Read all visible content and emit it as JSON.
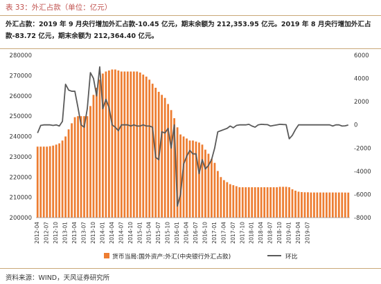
{
  "caption": "表 33：外汇占款（单位：亿元）",
  "paragraph": "外汇占款：2019 年 9 月央行增加外汇占款-10.45 亿元，期末余额为 212,353.95 亿元。2019 年 8 月央行增加外汇占款-83.72 亿元，期末余额为 212,364.40 亿元。",
  "source": "资料来源：WIND，天风证券研究所",
  "chart_data": {
    "type": "bar",
    "title": "",
    "xlabel": "",
    "ylabel": "",
    "ylim": [
      200000,
      280000
    ],
    "y_ticks": [
      200000,
      210000,
      220000,
      230000,
      240000,
      250000,
      260000,
      270000,
      280000
    ],
    "y2lim": [
      -8000,
      6000
    ],
    "y2_ticks": [
      -8000,
      -6000,
      -4000,
      -2000,
      0,
      2000,
      4000,
      6000
    ],
    "x_tick_labels": [
      "2012-04",
      "2012-07",
      "2012-10",
      "2013-01",
      "2013-04",
      "2013-07",
      "2013-10",
      "2014-01",
      "2014-04",
      "2014-07",
      "2014-10",
      "2015-01",
      "2015-04",
      "2015-07",
      "2015-10",
      "2016-01",
      "2016-04",
      "2016-07",
      "2016-10",
      "2017-01",
      "2017-04",
      "2017-07",
      "2017-10",
      "2018-01",
      "2018-04",
      "2018-07",
      "2018-10",
      "2019-01",
      "2019-04",
      "2019-07"
    ],
    "legend_position": "bottom",
    "colors": {
      "bar": "#ed7d31",
      "line": "#595959",
      "accent": "#c0504d"
    },
    "series": [
      {
        "name": "货币当局:国外资产:外汇(中央银行外汇占款)",
        "kind": "bar",
        "axis": "left",
        "values": [
          235000,
          235000,
          235000,
          235000,
          235200,
          235500,
          236000,
          236600,
          238000,
          240000,
          243500,
          246500,
          249500,
          250000,
          250000,
          250000,
          250000,
          255000,
          260500,
          264000,
          268000,
          271000,
          272000,
          272500,
          273000,
          273000,
          272500,
          272000,
          272000,
          272000,
          272000,
          272000,
          272000,
          271500,
          270500,
          269500,
          268000,
          266000,
          264000,
          262000,
          260500,
          259000,
          256000,
          253000,
          249000,
          244500,
          241000,
          240000,
          239000,
          238000,
          238000,
          237500,
          237000,
          236000,
          233500,
          231500,
          229000,
          227000,
          223000,
          220000,
          218500,
          217500,
          216500,
          216000,
          215500,
          215000,
          215000,
          215000,
          215000,
          215000,
          215000,
          215000,
          215000,
          215000,
          215000,
          215000,
          215000,
          215000,
          215200,
          215200,
          215200,
          215000,
          214000,
          213300,
          212800,
          212600,
          212500,
          212500,
          212400,
          212400,
          212400,
          212400,
          212400,
          212400,
          212400,
          212400,
          212400,
          212400,
          212400,
          212364,
          212354
        ]
      },
      {
        "name": "环比",
        "kind": "line",
        "axis": "right",
        "values": [
          -700,
          -50,
          0,
          0,
          0,
          -50,
          0,
          -100,
          300,
          3500,
          3000,
          2900,
          2900,
          1500,
          0,
          -200,
          1400,
          4500,
          4000,
          2500,
          5000,
          1400,
          2200,
          1500,
          0,
          -200,
          -500,
          0,
          0,
          0,
          -100,
          0,
          -100,
          -100,
          0,
          -100,
          -100,
          -200,
          -2800,
          -3000,
          -600,
          -700,
          -300,
          -2000,
          0,
          -7000,
          -6000,
          -3400,
          -2700,
          -2200,
          -2500,
          -2500,
          -4200,
          -3000,
          -3800,
          -3500,
          -3000,
          -2000,
          -600,
          -500,
          -400,
          -300,
          -100,
          -250,
          -50,
          0,
          0,
          0,
          50,
          -100,
          -200,
          0,
          50,
          30,
          20,
          -100,
          -50,
          0,
          50,
          30,
          20,
          -1200,
          -900,
          -400,
          0,
          0,
          0,
          0,
          0,
          0,
          0,
          0,
          0,
          0,
          0,
          -100,
          0,
          0,
          -100,
          -84,
          -10
        ]
      }
    ]
  }
}
